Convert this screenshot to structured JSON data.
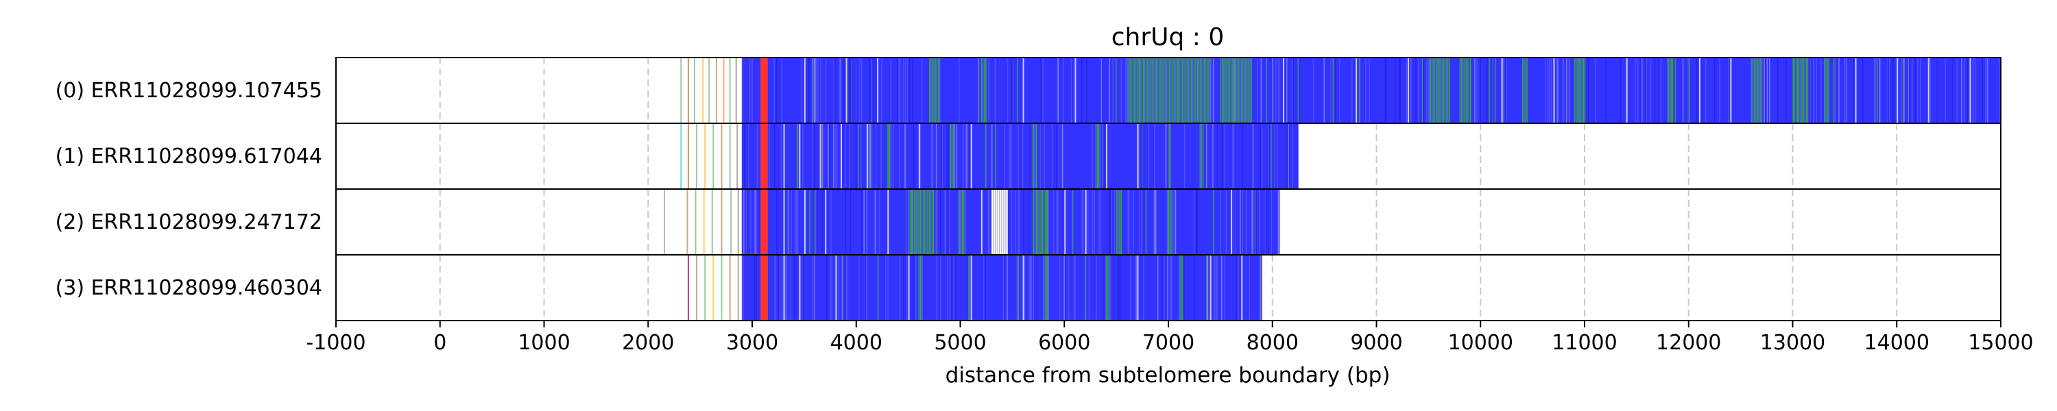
{
  "chart_data": {
    "type": "heatmap",
    "title": "chrUq : 0",
    "xlabel": "distance from subtelomere boundary (bp)",
    "ylabel": "",
    "xlim": [
      -1000,
      15000
    ],
    "xticks": [
      -1000,
      0,
      1000,
      2000,
      3000,
      4000,
      5000,
      6000,
      7000,
      8000,
      9000,
      10000,
      11000,
      12000,
      13000,
      14000,
      15000
    ],
    "xtick_labels": [
      "-1000",
      "0",
      "1000",
      "2000",
      "3000",
      "4000",
      "5000",
      "6000",
      "7000",
      "8000",
      "9000",
      "10000",
      "11000",
      "12000",
      "13000",
      "14000",
      "15000"
    ],
    "grid": "vertical dashed",
    "colors": {
      "main": "#3333ff",
      "green": "#33aa33",
      "red": "#ff3333",
      "white": "#ffffff",
      "light": "#ccccff"
    },
    "rows": [
      {
        "label": "(0) ERR11028099.107455",
        "start": 2900,
        "end": 15000,
        "scatter": [
          [
            2310,
            "#99cc99"
          ],
          [
            2380,
            "#cc9966"
          ],
          [
            2440,
            "#99cc99"
          ],
          [
            2520,
            "#ffcc66"
          ],
          [
            2580,
            "#99cc99"
          ],
          [
            2650,
            "#ccaa88"
          ],
          [
            2720,
            "#ffaa77"
          ],
          [
            2780,
            "#99cc99"
          ],
          [
            2840,
            "#aaaaaa"
          ]
        ],
        "green_regions": [
          [
            4700,
            4800
          ],
          [
            5200,
            5250
          ],
          [
            6600,
            7400
          ],
          [
            7500,
            7800
          ],
          [
            9500,
            9700
          ],
          [
            9800,
            9900
          ],
          [
            10400,
            10450
          ],
          [
            10900,
            11000
          ],
          [
            11800,
            11850
          ],
          [
            12600,
            12700
          ],
          [
            13000,
            13150
          ],
          [
            13300,
            13350
          ]
        ],
        "light_lines": [
          3500,
          3900,
          4200,
          5600,
          6100,
          8100,
          8800,
          9300,
          10200,
          10700,
          11400,
          12100,
          12400,
          13600,
          14000,
          14300,
          14700
        ],
        "red_regions": [
          [
            3080,
            3150
          ]
        ]
      },
      {
        "label": "(1) ERR11028099.617044",
        "start": 2900,
        "end": 8250,
        "scatter": [
          [
            2310,
            "#66dddd"
          ],
          [
            2380,
            "#cc9966"
          ],
          [
            2460,
            "#99cc99"
          ],
          [
            2540,
            "#ffcc66"
          ],
          [
            2620,
            "#99cc99"
          ],
          [
            2700,
            "#ccaa88"
          ],
          [
            2780,
            "#99cc99"
          ],
          [
            2850,
            "#aaaaaa"
          ]
        ],
        "green_regions": [
          [
            4300,
            4330
          ],
          [
            4900,
            4930
          ],
          [
            5700,
            5730
          ],
          [
            6300,
            6330
          ],
          [
            7300,
            7330
          ]
        ],
        "light_lines": [
          3300,
          3450,
          3650,
          3850,
          4100,
          4600,
          5100,
          6400,
          6700
        ],
        "red_regions": [
          [
            3080,
            3150
          ]
        ]
      },
      {
        "label": "(2) ERR11028099.247172",
        "start": 2900,
        "end": 8070,
        "scatter": [
          [
            2150,
            "#99cc99"
          ],
          [
            2370,
            "#ccaa88"
          ],
          [
            2450,
            "#99cc99"
          ],
          [
            2530,
            "#ffcc66"
          ],
          [
            2610,
            "#99cc99"
          ],
          [
            2700,
            "#ccaa88"
          ],
          [
            2790,
            "#99cc99"
          ],
          [
            2860,
            "#aaaaaa"
          ]
        ],
        "green_regions": [
          [
            4500,
            4750
          ],
          [
            5000,
            5050
          ],
          [
            5700,
            5850
          ],
          [
            6500,
            6550
          ],
          [
            7000,
            7040
          ]
        ],
        "light_lines": [
          3300,
          3500,
          3700,
          4300,
          5200,
          5300,
          5400,
          6000,
          6200,
          7600
        ],
        "white_regions": [
          [
            5300,
            5450
          ]
        ],
        "red_regions": [
          [
            3080,
            3150
          ]
        ]
      },
      {
        "label": "(3) ERR11028099.460304",
        "start": 2900,
        "end": 7900,
        "scatter": [
          [
            2380,
            "#aa4488"
          ],
          [
            2460,
            "#ccaa88"
          ],
          [
            2540,
            "#99cc99"
          ],
          [
            2620,
            "#ffcc66"
          ],
          [
            2700,
            "#99cc99"
          ],
          [
            2780,
            "#ccaa88"
          ],
          [
            2860,
            "#aaaaaa"
          ]
        ],
        "green_regions": [
          [
            4600,
            4630
          ],
          [
            5800,
            5830
          ],
          [
            6400,
            6430
          ],
          [
            7100,
            7130
          ]
        ],
        "light_lines": [
          3300,
          3450,
          3800,
          4500,
          5100,
          5600,
          6700,
          7400,
          7700
        ],
        "red_regions": [
          [
            3080,
            3150
          ]
        ]
      }
    ]
  }
}
